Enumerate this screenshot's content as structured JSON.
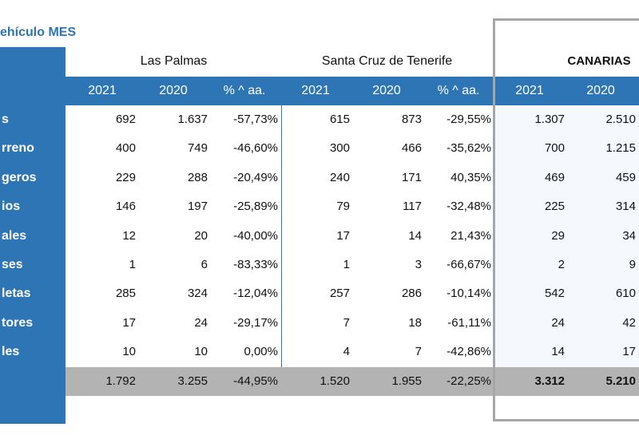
{
  "title": "ehículo MES",
  "groups": {
    "las_palmas": "Las Palmas",
    "santa_cruz": "Santa Cruz de Tenerife",
    "canarias": "CANARIAS"
  },
  "headers": [
    "2021",
    "2020",
    "% ^ aa.",
    "2021",
    "2020",
    "% ^ aa.",
    "2021",
    "2020"
  ],
  "rows": [
    {
      "label": "s",
      "lp": [
        "692",
        "1.637",
        "-57,73%"
      ],
      "sc": [
        "615",
        "873",
        "-29,55%"
      ],
      "ca": [
        "1.307",
        "2.510"
      ]
    },
    {
      "label": "rreno",
      "lp": [
        "400",
        "749",
        "-46,60%"
      ],
      "sc": [
        "300",
        "466",
        "-35,62%"
      ],
      "ca": [
        "700",
        "1.215"
      ]
    },
    {
      "label": "geros",
      "lp": [
        "229",
        "288",
        "-20,49%"
      ],
      "sc": [
        "240",
        "171",
        "40,35%"
      ],
      "ca": [
        "469",
        "459"
      ]
    },
    {
      "label": "ios",
      "lp": [
        "146",
        "197",
        "-25,89%"
      ],
      "sc": [
        "79",
        "117",
        "-32,48%"
      ],
      "ca": [
        "225",
        "314"
      ]
    },
    {
      "label": "ales",
      "lp": [
        "12",
        "20",
        "-40,00%"
      ],
      "sc": [
        "17",
        "14",
        "21,43%"
      ],
      "ca": [
        "29",
        "34"
      ]
    },
    {
      "label": "ses",
      "lp": [
        "1",
        "6",
        "-83,33%"
      ],
      "sc": [
        "1",
        "3",
        "-66,67%"
      ],
      "ca": [
        "2",
        "9"
      ]
    },
    {
      "label": "letas",
      "lp": [
        "285",
        "324",
        "-12,04%"
      ],
      "sc": [
        "257",
        "286",
        "-10,14%"
      ],
      "ca": [
        "542",
        "610"
      ]
    },
    {
      "label": "tores",
      "lp": [
        "17",
        "24",
        "-29,17%"
      ],
      "sc": [
        "7",
        "18",
        "-61,11%"
      ],
      "ca": [
        "24",
        "42"
      ]
    },
    {
      "label": "les",
      "lp": [
        "10",
        "10",
        "0,00%"
      ],
      "sc": [
        "4",
        "7",
        "-42,86%"
      ],
      "ca": [
        "14",
        "17"
      ]
    }
  ],
  "totals": {
    "lp": [
      "1.792",
      "3.255",
      "-44,95%"
    ],
    "sc": [
      "1.520",
      "1.955",
      "-22,25%"
    ],
    "ca": [
      "3.312",
      "5.210"
    ]
  }
}
